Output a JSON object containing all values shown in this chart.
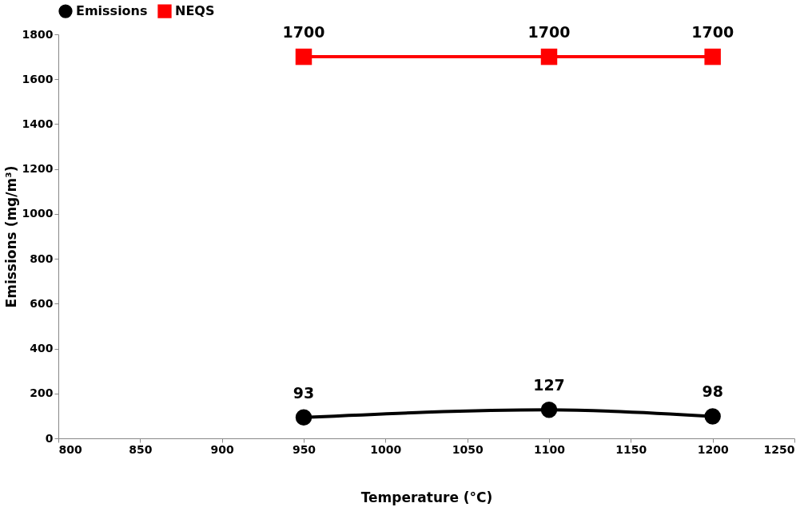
{
  "chart_data": {
    "type": "line",
    "xlabel": "Temperature (°C)",
    "ylabel": "Emissions (mg/m³)",
    "x": [
      950,
      1100,
      1200
    ],
    "series": [
      {
        "name": "Emissions",
        "color": "#000000",
        "values": [
          93,
          127,
          98
        ],
        "marker": "circle"
      },
      {
        "name": "NEQS",
        "color": "#ff0000",
        "values": [
          1700,
          1700,
          1700
        ],
        "marker": "square"
      }
    ],
    "xlim": [
      800,
      1250
    ],
    "xticks": [
      800,
      850,
      900,
      950,
      1000,
      1050,
      1100,
      1150,
      1200,
      1250
    ],
    "ylim": [
      0,
      1800
    ],
    "yticks": [
      0,
      200,
      400,
      600,
      800,
      1000,
      1200,
      1400,
      1600,
      1800
    ],
    "grid": false,
    "legend": "top",
    "data_labels": true,
    "line_style": "solid"
  }
}
